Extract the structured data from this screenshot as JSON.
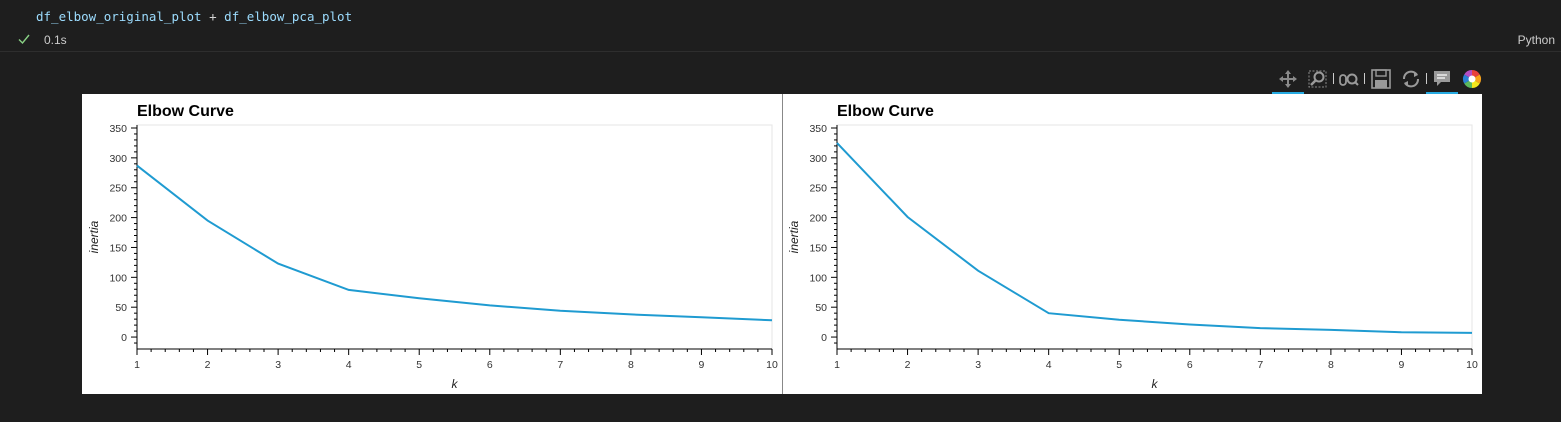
{
  "cell": {
    "code_left": "df_elbow_original_plot",
    "code_op": "+",
    "code_right": "df_elbow_pca_plot",
    "exec_time": "0.1s",
    "kernel": "Python",
    "status_icon": "check-icon",
    "status_color": "#89d185"
  },
  "toolbar": {
    "tools": [
      "pan-icon",
      "box-zoom-icon",
      "wheel-zoom-icon",
      "save-icon",
      "reset-icon",
      "hover-icon",
      "bokeh-logo"
    ],
    "active_color": "#26aae1"
  },
  "chart_data": [
    {
      "type": "line",
      "title": "Elbow Curve",
      "xlabel": "k",
      "ylabel": "inertia",
      "x": [
        1,
        2,
        3,
        4,
        5,
        6,
        7,
        8,
        9,
        10
      ],
      "series": [
        {
          "values": [
            287,
            195,
            123,
            79,
            65,
            53,
            44,
            38,
            33,
            28
          ]
        }
      ],
      "xlim": [
        1,
        10
      ],
      "ylim": [
        -20,
        355
      ],
      "xticks": [
        "1",
        "2",
        "3",
        "4",
        "5",
        "6",
        "7",
        "8",
        "9",
        "10"
      ],
      "yticks": [
        "0",
        "50",
        "100",
        "150",
        "200",
        "250",
        "300",
        "350"
      ],
      "color": "#1f9bd1",
      "grid": false
    },
    {
      "type": "line",
      "title": "Elbow Curve",
      "xlabel": "k",
      "ylabel": "inertia",
      "x": [
        1,
        2,
        3,
        4,
        5,
        6,
        7,
        8,
        9,
        10
      ],
      "series": [
        {
          "values": [
            325,
            201,
            111,
            40,
            29,
            21,
            15,
            12,
            8,
            7
          ]
        }
      ],
      "xlim": [
        1,
        10
      ],
      "ylim": [
        -20,
        355
      ],
      "xticks": [
        "1",
        "2",
        "3",
        "4",
        "5",
        "6",
        "7",
        "8",
        "9",
        "10"
      ],
      "yticks": [
        "0",
        "50",
        "100",
        "150",
        "200",
        "250",
        "300",
        "350"
      ],
      "color": "#1f9bd1",
      "grid": false
    }
  ]
}
